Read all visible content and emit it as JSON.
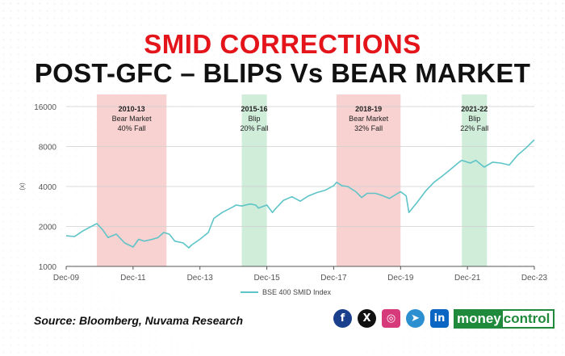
{
  "header": {
    "title_line1": "SMID CORRECTIONS",
    "title_line2": "POST-GFC – BLIPS Vs BEAR MARKET"
  },
  "colors": {
    "title_red": "#e4141b",
    "line": "#5ec4c8",
    "bear_band": "#f7c9c9",
    "blip_band": "#c8ead3"
  },
  "chart_data": {
    "type": "line",
    "title": "",
    "xlabel": "",
    "ylabel": "(x)",
    "y_scale": "log",
    "ylim": [
      1000,
      16000
    ],
    "y_ticks": [
      1000,
      2000,
      4000,
      8000,
      16000
    ],
    "y_tick_labels": [
      "1000",
      "2000",
      "4000",
      "8000",
      "16000"
    ],
    "x_ticks": [
      "Dec-09",
      "Dec-11",
      "Dec-13",
      "Dec-15",
      "Dec-17",
      "Dec-19",
      "Dec-21",
      "Dec-23"
    ],
    "xlim": [
      "2009-12",
      "2023-12"
    ],
    "grid": "horizontal",
    "legend_position": "bottom",
    "series": [
      {
        "name": "BSE 400 SMID Index",
        "x": [
          "2009-12",
          "2010-03",
          "2010-06",
          "2010-09",
          "2010-11",
          "2011-01",
          "2011-03",
          "2011-06",
          "2011-09",
          "2011-12",
          "2012-02",
          "2012-04",
          "2012-07",
          "2012-09",
          "2012-11",
          "2013-01",
          "2013-03",
          "2013-06",
          "2013-08",
          "2013-09",
          "2013-12",
          "2014-03",
          "2014-05",
          "2014-08",
          "2014-11",
          "2015-01",
          "2015-03",
          "2015-06",
          "2015-08",
          "2015-09",
          "2015-12",
          "2016-02",
          "2016-03",
          "2016-06",
          "2016-09",
          "2016-12",
          "2017-03",
          "2017-06",
          "2017-09",
          "2017-12",
          "2018-01",
          "2018-03",
          "2018-05",
          "2018-08",
          "2018-10",
          "2018-12",
          "2019-03",
          "2019-05",
          "2019-08",
          "2019-11",
          "2019-12",
          "2020-02",
          "2020-03",
          "2020-06",
          "2020-09",
          "2020-12",
          "2021-03",
          "2021-06",
          "2021-09",
          "2021-10",
          "2022-01",
          "2022-03",
          "2022-06",
          "2022-09",
          "2022-12",
          "2023-03",
          "2023-06",
          "2023-09",
          "2023-12"
        ],
        "values": [
          1700,
          1680,
          1850,
          2000,
          2100,
          1900,
          1650,
          1750,
          1500,
          1400,
          1600,
          1550,
          1600,
          1650,
          1800,
          1750,
          1550,
          1500,
          1380,
          1450,
          1600,
          1800,
          2300,
          2550,
          2750,
          2900,
          2850,
          2950,
          2900,
          2750,
          2900,
          2550,
          2700,
          3150,
          3350,
          3100,
          3400,
          3600,
          3750,
          4050,
          4300,
          4050,
          4000,
          3650,
          3300,
          3550,
          3550,
          3450,
          3250,
          3550,
          3650,
          3400,
          2550,
          3050,
          3700,
          4300,
          4800,
          5400,
          6100,
          6300,
          6000,
          6300,
          5600,
          6100,
          6000,
          5800,
          6900,
          7800,
          9000
        ]
      }
    ],
    "bands": [
      {
        "start": "2010-11",
        "end": "2012-12",
        "kind": "bear",
        "period": "2010-13",
        "label": "Bear Market",
        "fall": "40% Fall"
      },
      {
        "start": "2015-03",
        "end": "2015-12",
        "kind": "blip",
        "period": "2015-16",
        "label": "Blip",
        "fall": "20% Fall"
      },
      {
        "start": "2018-01",
        "end": "2019-12",
        "kind": "bear",
        "period": "2018-19",
        "label": "Bear Market",
        "fall": "32% Fall"
      },
      {
        "start": "2021-10",
        "end": "2022-07",
        "kind": "blip",
        "period": "2021-22",
        "label": "Blip",
        "fall": "22% Fall"
      }
    ]
  },
  "footer": {
    "source": "Source: Bloomberg, Nuvama Research",
    "social_icons": [
      "facebook-icon",
      "x-icon",
      "instagram-icon",
      "telegram-icon",
      "linkedin-icon"
    ],
    "social_glyphs": [
      "f",
      "X",
      "◎",
      "➤",
      "in"
    ],
    "social_colors": [
      "#1a3f8c",
      "#111111",
      "#d63a7a",
      "#2c8fd0",
      "#0a66c2"
    ],
    "brand_part1": "money",
    "brand_part2": "control"
  }
}
